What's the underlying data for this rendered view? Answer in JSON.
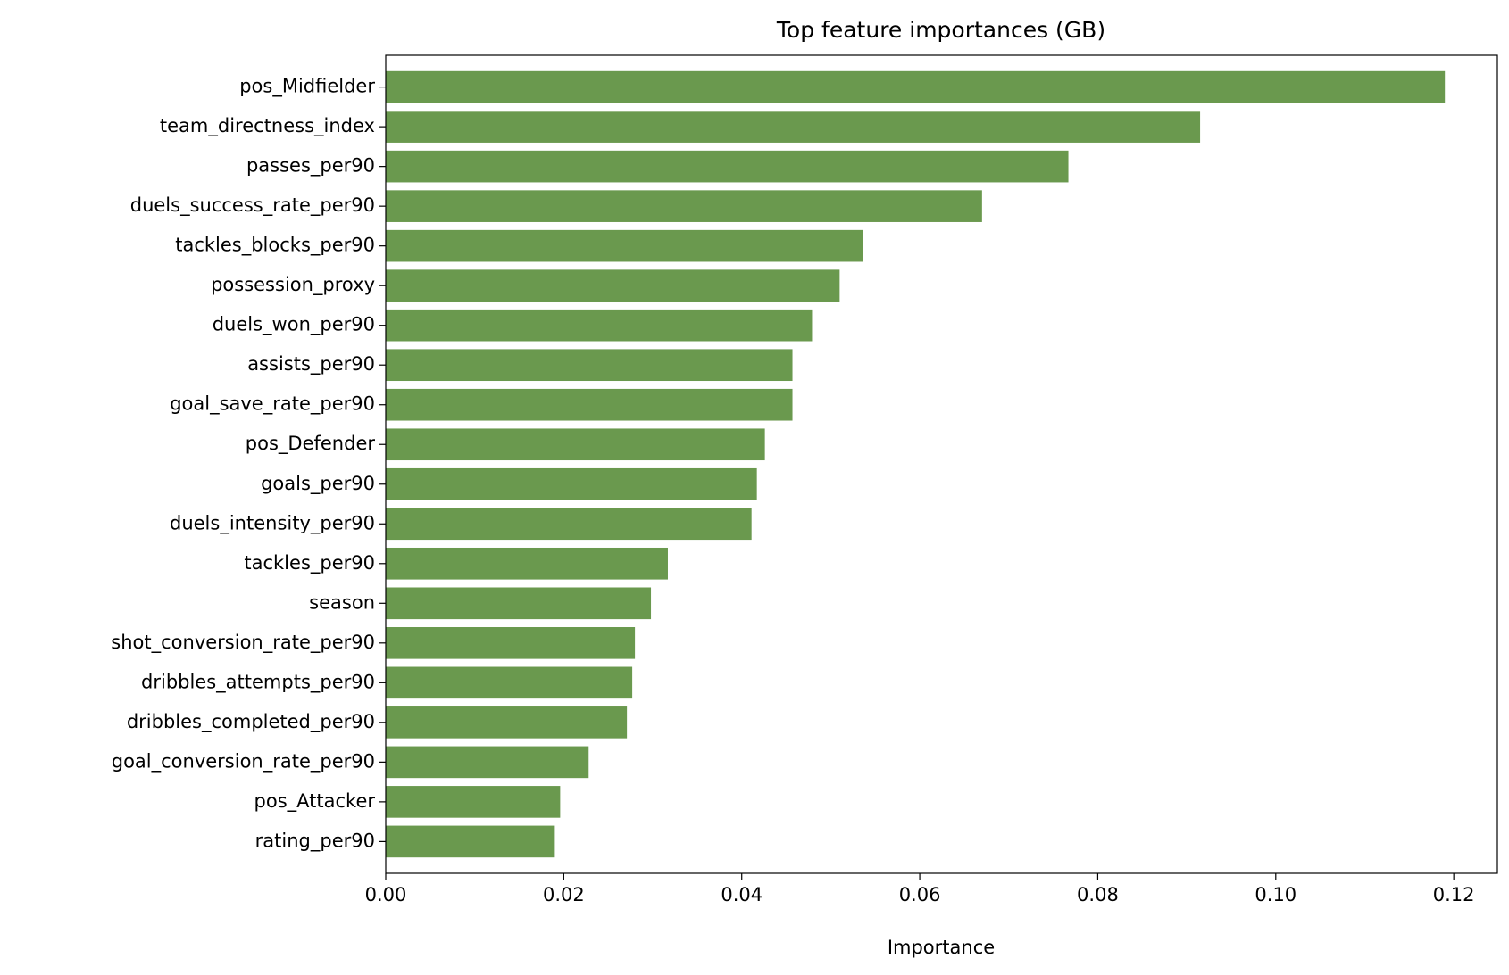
{
  "chart_data": {
    "type": "barh",
    "title": "Top feature importances (GB)",
    "x_label": "Importance",
    "categories": [
      "pos_Midfielder",
      "team_directness_index",
      "passes_per90",
      "duels_success_rate_per90",
      "tackles_blocks_per90",
      "possession_proxy",
      "duels_won_per90",
      "assists_per90",
      "goal_save_rate_per90",
      "pos_Defender",
      "goals_per90",
      "duels_intensity_per90",
      "tackles_per90",
      "season",
      "shot_conversion_rate_per90",
      "dribbles_attempts_per90",
      "dribbles_completed_per90",
      "goal_conversion_rate_per90",
      "pos_Attacker",
      "rating_per90"
    ],
    "values": [
      0.119,
      0.0915,
      0.0767,
      0.067,
      0.0536,
      0.051,
      0.0479,
      0.0457,
      0.0457,
      0.0426,
      0.0417,
      0.0411,
      0.0317,
      0.0298,
      0.028,
      0.0277,
      0.0271,
      0.0228,
      0.0196,
      0.019
    ],
    "color": "#6a994e",
    "xlim": [
      0,
      0.1249
    ],
    "xticks": [
      {
        "value": 0,
        "label": "0.00"
      },
      0.02,
      0.04,
      0.06,
      0.08,
      {
        "value": 0.1,
        "label": "0.10"
      },
      0.12
    ]
  }
}
